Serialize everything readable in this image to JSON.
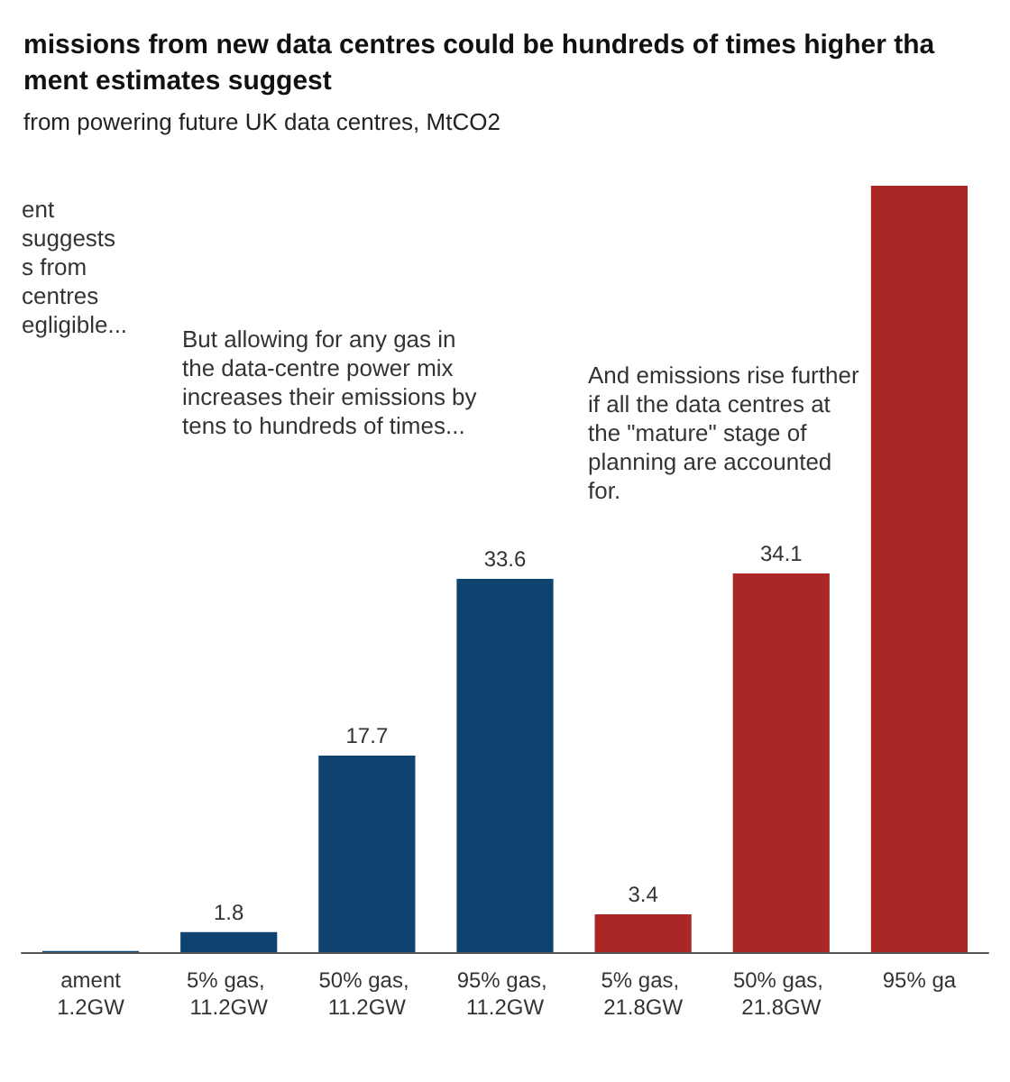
{
  "chart_data": {
    "type": "bar",
    "title": "missions from new data centres could be hundreds of times higher tha\nment estimates suggest",
    "subtitle": "from powering future UK data centres, MtCO2",
    "categories": [
      "ament\n1.2GW",
      "5% gas, 11.2GW",
      "50% gas, 11.2GW",
      "95% gas, 11.2GW",
      "5% gas, 21.8GW",
      "50% gas, 21.8GW",
      "95% ga"
    ],
    "values": [
      0.1,
      1.8,
      17.7,
      33.6,
      3.4,
      34.1,
      69
    ],
    "value_labels": [
      null,
      "1.8",
      "17.7",
      "33.6",
      "3.4",
      "34.1",
      null
    ],
    "colors": [
      "#0e426f",
      "#0e426f",
      "#0e426f",
      "#0e426f",
      "#aa2725",
      "#aa2725",
      "#aa2725"
    ],
    "annotations": [
      "ent\nsuggests\ns from\ncentres\negligible...",
      "But allowing for any gas in\nthe data-centre power mix\nincreases their emissions by\ntens to hundreds of times...",
      "And emissions rise further\nif all the data centres at\nthe \"mature\" stage of\nplanning are accounted\nfor."
    ]
  }
}
